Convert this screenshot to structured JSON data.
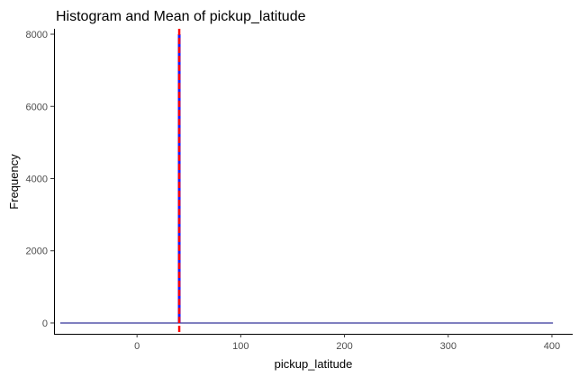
{
  "chart_data": {
    "type": "bar",
    "title": "Histogram and Mean of  pickup_latitude",
    "xlabel": "pickup_latitude",
    "ylabel": "Frequency",
    "xlim": [
      -80,
      420
    ],
    "ylim": [
      -300,
      8150
    ],
    "x_ticks": [
      0,
      100,
      200,
      300,
      400
    ],
    "y_ticks": [
      0,
      2000,
      4000,
      6000,
      8000
    ],
    "bins": {
      "x_start": -74,
      "x_end": 401,
      "baseline_count": 0,
      "spike": {
        "x": 40.7,
        "count": 8000
      }
    },
    "mean_line": {
      "x": 40.7,
      "style": "dashed"
    },
    "grid": false,
    "legend": "none",
    "colors": {
      "bar_outline": "#000080",
      "spike_fill": "#1a1aff",
      "mean_line": "#ff0000"
    }
  }
}
